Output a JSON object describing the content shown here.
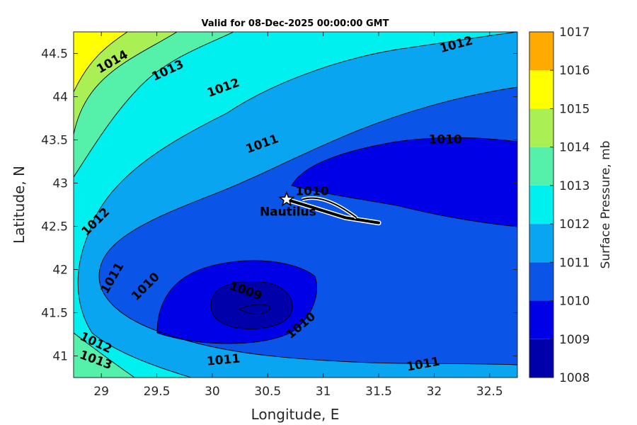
{
  "chart_data": {
    "type": "contour",
    "title": "Valid for 08-Dec-2025 00:00:00 GMT",
    "xlabel": "Longitude, E",
    "ylabel": "Latitude, N",
    "xlim": [
      28.75,
      32.75
    ],
    "ylim": [
      40.75,
      44.75
    ],
    "xticks": [
      "29",
      "29.5",
      "30",
      "30.5",
      "31",
      "31.5",
      "32",
      "32.5"
    ],
    "yticks": [
      "41",
      "41.5",
      "42",
      "42.5",
      "43",
      "43.5",
      "44",
      "44.5"
    ],
    "colorbar": {
      "label": "Surface Pressure, mb",
      "levels": [
        1008,
        1009,
        1010,
        1011,
        1012,
        1013,
        1014,
        1015,
        1016,
        1017
      ],
      "level_labels": [
        "1008",
        "1009",
        "1010",
        "1011",
        "1012",
        "1013",
        "1014",
        "1015",
        "1016",
        "1017"
      ],
      "colors": [
        "#0000aa",
        "#0000e6",
        "#0a55e8",
        "#0aa5f0",
        "#00f0f0",
        "#55f0aa",
        "#aaf055",
        "#ffff00",
        "#ffaa00",
        "#ff5500"
      ]
    },
    "contour_labels": [
      {
        "text": "1014",
        "lon": 29.1,
        "lat": 44.4
      },
      {
        "text": "1013",
        "lon": 29.6,
        "lat": 44.3
      },
      {
        "text": "1012",
        "lon": 30.1,
        "lat": 44.1
      },
      {
        "text": "1012",
        "lon": 32.2,
        "lat": 44.6
      },
      {
        "text": "1011",
        "lon": 30.45,
        "lat": 43.45
      },
      {
        "text": "1010",
        "lon": 32.1,
        "lat": 43.5
      },
      {
        "text": "1010",
        "lon": 30.9,
        "lat": 42.9
      },
      {
        "text": "1012",
        "lon": 28.95,
        "lat": 42.55
      },
      {
        "text": "1011",
        "lon": 29.1,
        "lat": 41.9
      },
      {
        "text": "1010",
        "lon": 29.4,
        "lat": 41.8
      },
      {
        "text": "1009",
        "lon": 30.3,
        "lat": 41.75
      },
      {
        "text": "1010",
        "lon": 30.8,
        "lat": 41.35
      },
      {
        "text": "1012",
        "lon": 28.95,
        "lat": 41.15
      },
      {
        "text": "1013",
        "lon": 28.95,
        "lat": 40.95
      },
      {
        "text": "1011",
        "lon": 30.1,
        "lat": 40.95
      },
      {
        "text": "1011",
        "lon": 31.9,
        "lat": 40.9
      }
    ],
    "marker": {
      "label": "Nautilus",
      "lon": 30.67,
      "lat": 42.81
    },
    "track": [
      [
        30.67,
        42.81
      ],
      [
        30.9,
        42.72
      ],
      [
        31.2,
        42.6
      ],
      [
        31.5,
        42.54
      ]
    ],
    "grid": false
  }
}
